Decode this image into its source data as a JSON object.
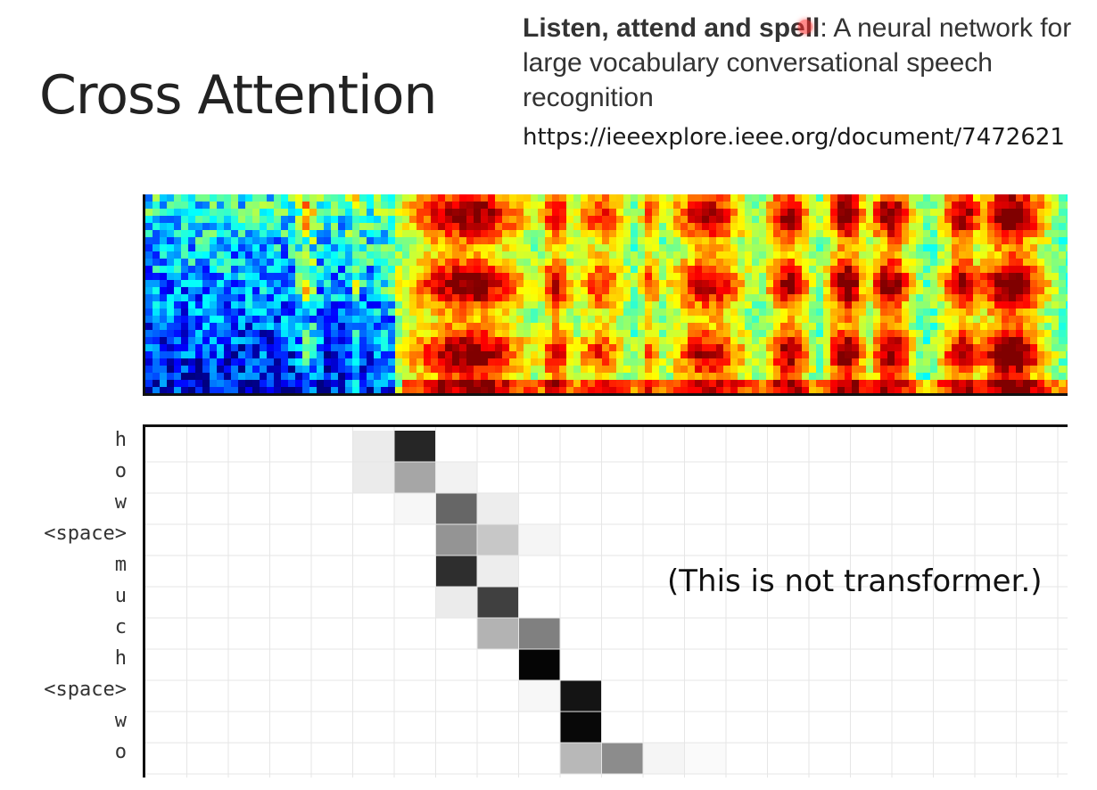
{
  "slide": {
    "title": "Cross Attention",
    "reference": {
      "paper_title_bold": "Listen, attend and spell",
      "paper_title_rest": ": A neural network for large vocabulary conversational speech recognition",
      "url": "https://ieeexplore.ieee.org/document/7472621"
    },
    "note": "(This is not transformer.)"
  },
  "attention": {
    "row_labels": [
      "h",
      "o",
      "w",
      "<space>",
      "m",
      "u",
      "c",
      "h",
      "<space>",
      "w",
      "o"
    ],
    "colors": {
      "cell_dark": "#000000",
      "grid_line": "#e6e6e6",
      "axis": "#111111"
    }
  }
}
